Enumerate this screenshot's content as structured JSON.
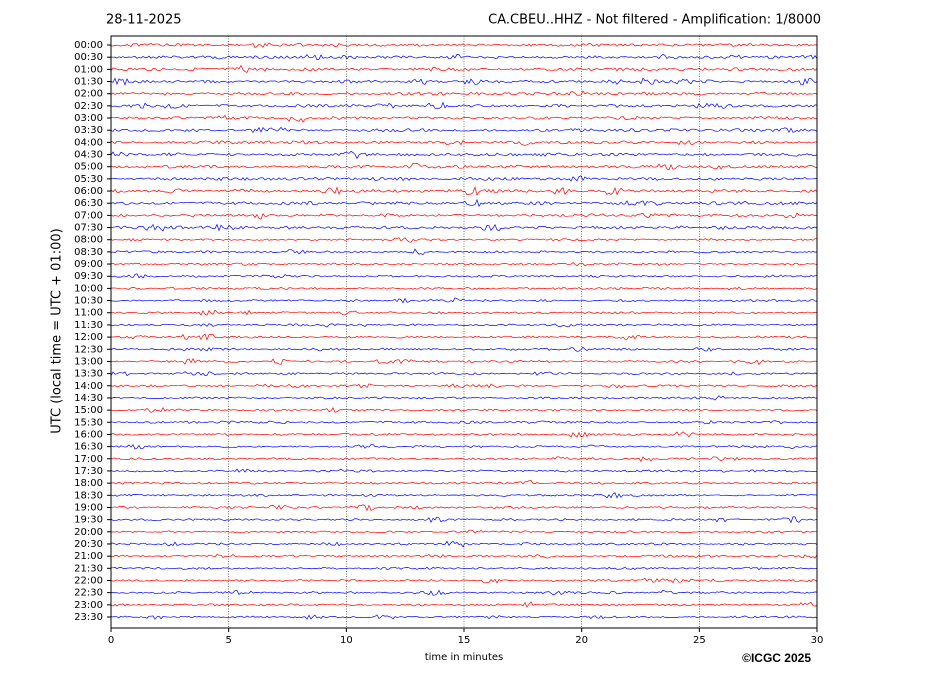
{
  "chart_data": {
    "type": "seismogram",
    "date": "28-11-2025",
    "title": "CA.CBEU..HHZ - Not filtered - Amplification: 1/8000",
    "y_label": "UTC (local time = UTC + 01:00)",
    "x_label": "time in minutes",
    "copyright": "©ICGC 2025",
    "rows": [
      "00:00",
      "00:30",
      "01:00",
      "01:30",
      "02:00",
      "02:30",
      "03:00",
      "03:30",
      "04:00",
      "04:30",
      "05:00",
      "05:30",
      "06:00",
      "06:30",
      "07:00",
      "07:30",
      "08:00",
      "08:30",
      "09:00",
      "09:30",
      "10:00",
      "10:30",
      "11:00",
      "11:30",
      "12:00",
      "12:30",
      "13:00",
      "13:30",
      "14:00",
      "14:30",
      "15:00",
      "15:30",
      "16:00",
      "16:30",
      "17:00",
      "17:30",
      "18:00",
      "18:30",
      "19:00",
      "19:30",
      "20:00",
      "20:30",
      "21:00",
      "21:30",
      "22:00",
      "22:30",
      "23:00",
      "23:30"
    ],
    "colors": [
      "#ff0000",
      "#0000ff"
    ],
    "xlim": [
      0,
      30
    ],
    "xticks": [
      0,
      5,
      10,
      15,
      20,
      25,
      30
    ],
    "grid": true
  }
}
